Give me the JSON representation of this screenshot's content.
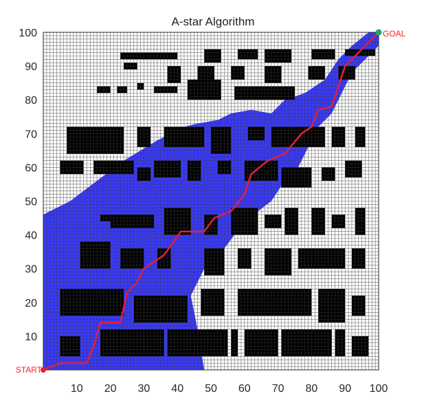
{
  "chart_data": {
    "type": "scatter",
    "title": "A-star Algorithm",
    "xlabel": "",
    "ylabel": "",
    "xlim": [
      0,
      100
    ],
    "ylim": [
      0,
      100
    ],
    "xticks": [
      10,
      20,
      30,
      40,
      50,
      60,
      70,
      80,
      90,
      100
    ],
    "yticks": [
      10,
      20,
      30,
      40,
      50,
      60,
      70,
      80,
      90,
      100
    ],
    "grid": true,
    "start": {
      "label": "START",
      "x": 0,
      "y": 0
    },
    "goal": {
      "label": "GOAL",
      "x": 100,
      "y": 100
    },
    "obstacles": [
      [
        23,
        92,
        40,
        94
      ],
      [
        48,
        91,
        53,
        95
      ],
      [
        58,
        92,
        64,
        95
      ],
      [
        66,
        91,
        74,
        95
      ],
      [
        80,
        92,
        87,
        95
      ],
      [
        90,
        93,
        99,
        95
      ],
      [
        24,
        89,
        28,
        91
      ],
      [
        37,
        85,
        41,
        90
      ],
      [
        46,
        85,
        51,
        90
      ],
      [
        56,
        86,
        60,
        90
      ],
      [
        66,
        85,
        71,
        90
      ],
      [
        79,
        86,
        84,
        90
      ],
      [
        88,
        86,
        93,
        90
      ],
      [
        16,
        82,
        20,
        84
      ],
      [
        22,
        82,
        25,
        84
      ],
      [
        28,
        83,
        30,
        85
      ],
      [
        33,
        82,
        40,
        84
      ],
      [
        43,
        80,
        53,
        86
      ],
      [
        57,
        80,
        75,
        84
      ],
      [
        7,
        64,
        24,
        72
      ],
      [
        28,
        66,
        32,
        72
      ],
      [
        36,
        66,
        48,
        72
      ],
      [
        50,
        64,
        56,
        72
      ],
      [
        61,
        68,
        66,
        72
      ],
      [
        68,
        66,
        84,
        72
      ],
      [
        86,
        66,
        90,
        72
      ],
      [
        93,
        66,
        96,
        72
      ],
      [
        5,
        58,
        12,
        62
      ],
      [
        15,
        58,
        27,
        62
      ],
      [
        28,
        56,
        32,
        60
      ],
      [
        33,
        57,
        41,
        62
      ],
      [
        43,
        56,
        47,
        62
      ],
      [
        52,
        58,
        56,
        62
      ],
      [
        60,
        56,
        70,
        62
      ],
      [
        71,
        54,
        80,
        60
      ],
      [
        83,
        56,
        87,
        60
      ],
      [
        90,
        57,
        95,
        62
      ],
      [
        17,
        44,
        24,
        46
      ],
      [
        20,
        42,
        33,
        46
      ],
      [
        36,
        40,
        44,
        48
      ],
      [
        48,
        40,
        52,
        46
      ],
      [
        56,
        40,
        64,
        48
      ],
      [
        66,
        42,
        71,
        46
      ],
      [
        72,
        40,
        76,
        48
      ],
      [
        80,
        40,
        84,
        48
      ],
      [
        86,
        42,
        90,
        46
      ],
      [
        93,
        40,
        96,
        48
      ],
      [
        11,
        30,
        20,
        38
      ],
      [
        23,
        30,
        30,
        36
      ],
      [
        34,
        30,
        38,
        36
      ],
      [
        48,
        28,
        54,
        36
      ],
      [
        58,
        30,
        62,
        36
      ],
      [
        66,
        28,
        74,
        36
      ],
      [
        76,
        30,
        90,
        36
      ],
      [
        92,
        30,
        96,
        36
      ],
      [
        5,
        16,
        24,
        24
      ],
      [
        27,
        14,
        43,
        22
      ],
      [
        47,
        16,
        54,
        24
      ],
      [
        58,
        16,
        80,
        24
      ],
      [
        82,
        14,
        90,
        24
      ],
      [
        92,
        16,
        96,
        22
      ],
      [
        5,
        4,
        11,
        10
      ],
      [
        17,
        4,
        36,
        12
      ],
      [
        37,
        4,
        55,
        12
      ],
      [
        56,
        4,
        58,
        12
      ],
      [
        60,
        4,
        70,
        12
      ],
      [
        71,
        4,
        86,
        12
      ],
      [
        87,
        4,
        90,
        12
      ],
      [
        92,
        4,
        97,
        10
      ]
    ],
    "explored_polygon": [
      [
        0,
        0
      ],
      [
        0,
        46
      ],
      [
        8,
        50
      ],
      [
        16,
        56
      ],
      [
        24,
        62
      ],
      [
        34,
        68
      ],
      [
        42,
        72
      ],
      [
        46,
        73
      ],
      [
        52,
        74
      ],
      [
        56,
        76
      ],
      [
        62,
        77
      ],
      [
        68,
        76
      ],
      [
        72,
        80
      ],
      [
        78,
        82
      ],
      [
        84,
        86
      ],
      [
        88,
        92
      ],
      [
        92,
        96
      ],
      [
        97,
        100
      ],
      [
        100,
        100
      ],
      [
        100,
        96
      ],
      [
        96,
        92
      ],
      [
        92,
        88
      ],
      [
        90,
        84
      ],
      [
        88,
        80
      ],
      [
        86,
        76
      ],
      [
        82,
        72
      ],
      [
        79,
        66
      ],
      [
        76,
        60
      ],
      [
        72,
        56
      ],
      [
        68,
        50
      ],
      [
        60,
        44
      ],
      [
        54,
        36
      ],
      [
        48,
        30
      ],
      [
        44,
        22
      ],
      [
        46,
        12
      ],
      [
        48,
        0
      ]
    ],
    "path": [
      [
        0,
        0
      ],
      [
        5,
        2
      ],
      [
        13,
        2
      ],
      [
        15,
        7
      ],
      [
        17,
        14
      ],
      [
        23,
        14
      ],
      [
        25,
        23
      ],
      [
        28,
        26
      ],
      [
        30,
        30
      ],
      [
        36,
        34
      ],
      [
        41,
        41
      ],
      [
        48,
        41
      ],
      [
        51,
        45
      ],
      [
        56,
        47
      ],
      [
        60,
        52
      ],
      [
        62,
        58
      ],
      [
        67,
        62
      ],
      [
        72,
        64
      ],
      [
        77,
        70
      ],
      [
        80,
        72
      ],
      [
        82,
        77
      ],
      [
        86,
        78
      ],
      [
        88,
        84
      ],
      [
        90,
        90
      ],
      [
        92,
        92
      ],
      [
        94,
        94
      ],
      [
        96,
        96
      ],
      [
        100,
        100
      ]
    ],
    "colors": {
      "obstacle": "#000000",
      "grid": "#3a3a3a",
      "explored": "#2424ff",
      "path": "#e0203a",
      "goal": "#1aa866",
      "label": "#ff2020"
    }
  }
}
